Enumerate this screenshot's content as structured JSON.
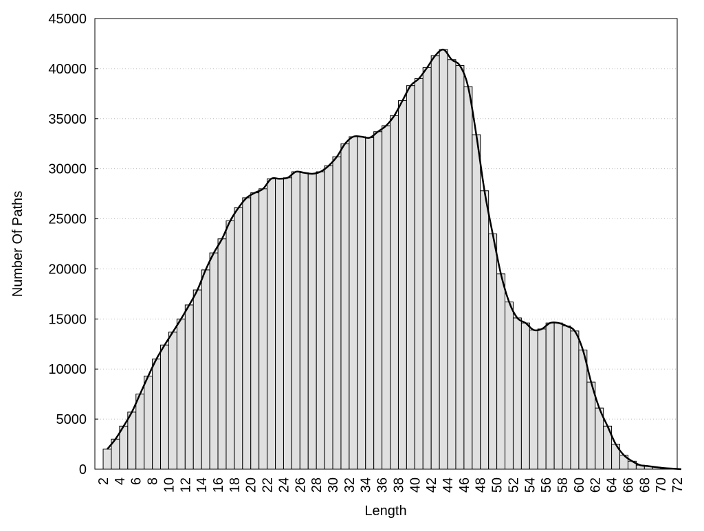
{
  "chart_data": {
    "type": "bar",
    "x_label": "Length",
    "y_label": "Number Of Paths",
    "categories": [
      2,
      null,
      4,
      null,
      6,
      null,
      8,
      null,
      10,
      null,
      12,
      null,
      14,
      null,
      16,
      null,
      18,
      null,
      20,
      null,
      22,
      null,
      24,
      null,
      26,
      null,
      28,
      null,
      30,
      null,
      32,
      null,
      34,
      null,
      36,
      null,
      38,
      null,
      40,
      null,
      42,
      null,
      44,
      null,
      46,
      null,
      48,
      null,
      50,
      null,
      52,
      null,
      54,
      null,
      56,
      null,
      58,
      null,
      60,
      null,
      62,
      null,
      64,
      null,
      66,
      null,
      68,
      null,
      70,
      null,
      72
    ],
    "values": [
      2000,
      3000,
      4300,
      5700,
      7500,
      9300,
      11000,
      12400,
      13700,
      15000,
      16400,
      17900,
      19900,
      21600,
      23000,
      24800,
      26100,
      27100,
      27600,
      28000,
      29000,
      29000,
      29100,
      29700,
      29600,
      29500,
      29700,
      30300,
      31200,
      32500,
      33200,
      33200,
      33100,
      33700,
      34300,
      35300,
      36800,
      38300,
      39000,
      40100,
      41300,
      41900,
      40900,
      40300,
      38200,
      33400,
      27800,
      23500,
      19500,
      16700,
      15100,
      14600,
      13900,
      14000,
      14600,
      14600,
      14300,
      13800,
      11900,
      8700,
      6100,
      4300,
      2500,
      1400,
      800,
      400,
      300,
      200,
      100,
      50,
      0
    ],
    "color": "#e0e0e0",
    "edge_color": "#000000",
    "curve": true,
    "curve_color": "#000000",
    "ylim": [
      0,
      45000
    ],
    "yticks": [
      0,
      5000,
      10000,
      15000,
      20000,
      25000,
      30000,
      35000,
      40000,
      45000
    ],
    "grid": true
  }
}
